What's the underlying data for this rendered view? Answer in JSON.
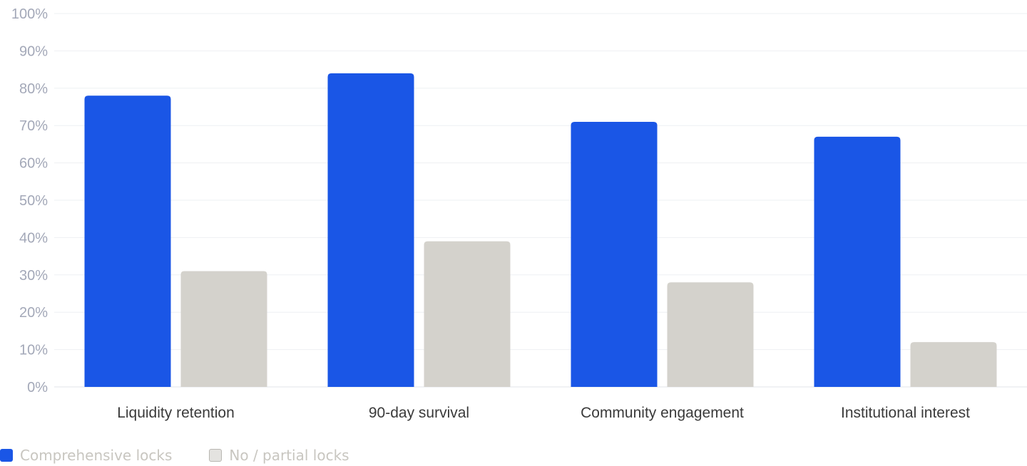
{
  "chart_data": {
    "type": "bar",
    "categories": [
      "Liquidity retention",
      "90-day survival",
      "Community engagement",
      "Institutional interest"
    ],
    "series": [
      {
        "name": "Comprehensive locks",
        "values": [
          78,
          84,
          71,
          67
        ],
        "color": "#1a56e6"
      },
      {
        "name": "No / partial locks",
        "values": [
          31,
          39,
          28,
          12
        ],
        "color": "#d4d2cc"
      }
    ],
    "ylim": [
      0,
      100
    ],
    "yticks": [
      "0%",
      "10%",
      "20%",
      "30%",
      "40%",
      "50%",
      "60%",
      "70%",
      "80%",
      "90%",
      "100%"
    ],
    "grid": true,
    "legend_position": "bottom-left"
  }
}
